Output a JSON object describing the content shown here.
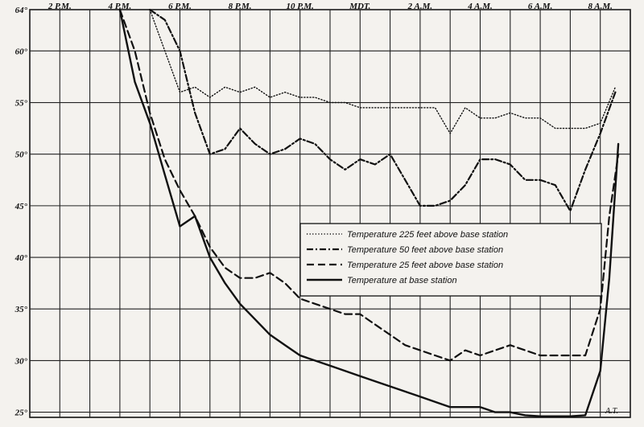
{
  "chart_data": {
    "type": "line",
    "title": "",
    "xlabel": "",
    "ylabel": "",
    "x_tick_labels": [
      "2 P.M.",
      "4 P.M.",
      "6 P.M.",
      "8 P.M.",
      "10 P.M.",
      "MDT.",
      "2 A.M.",
      "4 A.M.",
      "6 A.M.",
      "8 A.M."
    ],
    "x_tick_hours": [
      14,
      16,
      18,
      20,
      22,
      24,
      26,
      28,
      30,
      32
    ],
    "x_unit_note": "hours from midnight of starting day; 24 = midnight (MDT.)",
    "xlim": [
      13,
      33
    ],
    "y_tick_labels": [
      "25°",
      "30°",
      "35°",
      "40°",
      "45°",
      "50°",
      "55°",
      "60°",
      "64°"
    ],
    "y_ticks": [
      25,
      30,
      35,
      40,
      45,
      50,
      55,
      60,
      64
    ],
    "ylim": [
      24.5,
      64
    ],
    "grid": true,
    "legend_position": "right-center",
    "series": [
      {
        "name": "Temperature 225 feet above base station",
        "style": "dotted",
        "x": [
          17.0,
          17.5,
          18.0,
          18.5,
          19.0,
          19.5,
          20.0,
          20.5,
          21.0,
          21.5,
          22.0,
          22.5,
          23.0,
          23.5,
          24.0,
          24.5,
          25.0,
          25.5,
          26.0,
          26.5,
          27.0,
          27.5,
          28.0,
          28.5,
          29.0,
          29.5,
          30.0,
          30.5,
          31.0,
          31.5,
          32.0,
          32.5
        ],
        "values": [
          64,
          60,
          56,
          56.5,
          55.5,
          56.5,
          56,
          56.5,
          55.5,
          56,
          55.5,
          55.5,
          55,
          55,
          54.5,
          54.5,
          54.5,
          54.5,
          54.5,
          54.5,
          52,
          54.5,
          53.5,
          53.5,
          54,
          53.5,
          53.5,
          52.5,
          52.5,
          52.5,
          53,
          56.5
        ]
      },
      {
        "name": "Temperature 50 feet above base station",
        "style": "dash-dot",
        "x": [
          17.0,
          17.5,
          18.0,
          18.5,
          19.0,
          19.5,
          20.0,
          20.5,
          21.0,
          21.5,
          22.0,
          22.5,
          23.0,
          23.5,
          24.0,
          24.5,
          25.0,
          25.5,
          26.0,
          26.5,
          27.0,
          27.5,
          28.0,
          28.5,
          29.0,
          29.5,
          30.0,
          30.5,
          31.0,
          31.5,
          32.0,
          32.5
        ],
        "values": [
          64,
          63,
          60,
          54,
          50,
          50.5,
          52.5,
          51,
          50,
          50.5,
          51.5,
          51,
          49.5,
          48.5,
          49.5,
          49,
          50,
          47.5,
          45,
          45,
          45.5,
          47,
          49.5,
          49.5,
          49,
          47.5,
          47.5,
          47,
          44.5,
          48.5,
          52,
          56
        ]
      },
      {
        "name": "Temperature 25 feet above base station",
        "style": "dashed",
        "x": [
          16.0,
          16.5,
          17.0,
          17.5,
          18.0,
          18.5,
          19.0,
          19.5,
          20.0,
          20.5,
          21.0,
          21.5,
          22.0,
          22.5,
          23.0,
          23.5,
          24.0,
          24.5,
          25.0,
          25.5,
          26.0,
          26.5,
          27.0,
          27.5,
          28.0,
          28.5,
          29.0,
          29.5,
          30.0,
          30.5,
          31.0,
          31.5,
          32.0,
          32.3,
          32.6
        ],
        "values": [
          64,
          60,
          54,
          49.5,
          46.5,
          44,
          41,
          39,
          38,
          38,
          38.5,
          37.5,
          36,
          35.5,
          35,
          34.5,
          34.5,
          33.5,
          32.5,
          31.5,
          31,
          30.5,
          30,
          31,
          30.5,
          31,
          31.5,
          31,
          30.5,
          30.5,
          30.5,
          30.5,
          35,
          44,
          50
        ]
      },
      {
        "name": "Temperature at base station",
        "style": "solid",
        "x": [
          16.0,
          16.5,
          17.0,
          17.5,
          18.0,
          18.5,
          19.0,
          19.5,
          20.0,
          20.5,
          21.0,
          21.5,
          22.0,
          22.5,
          23.0,
          23.5,
          24.0,
          24.5,
          25.0,
          25.5,
          26.0,
          26.5,
          27.0,
          27.5,
          28.0,
          28.5,
          29.0,
          29.5,
          30.0,
          30.5,
          31.0,
          31.5,
          32.0,
          32.3,
          32.6
        ],
        "values": [
          64,
          57,
          53,
          48,
          43,
          44,
          40,
          37.5,
          35.5,
          34,
          32.5,
          31.5,
          30.5,
          30,
          29.5,
          29,
          28.5,
          28,
          27.5,
          27,
          26.5,
          26,
          25.5,
          25.5,
          25.5,
          25,
          25,
          24.7,
          24.6,
          24.6,
          24.6,
          24.7,
          29,
          38,
          51
        ]
      }
    ],
    "signature": "A.T."
  }
}
